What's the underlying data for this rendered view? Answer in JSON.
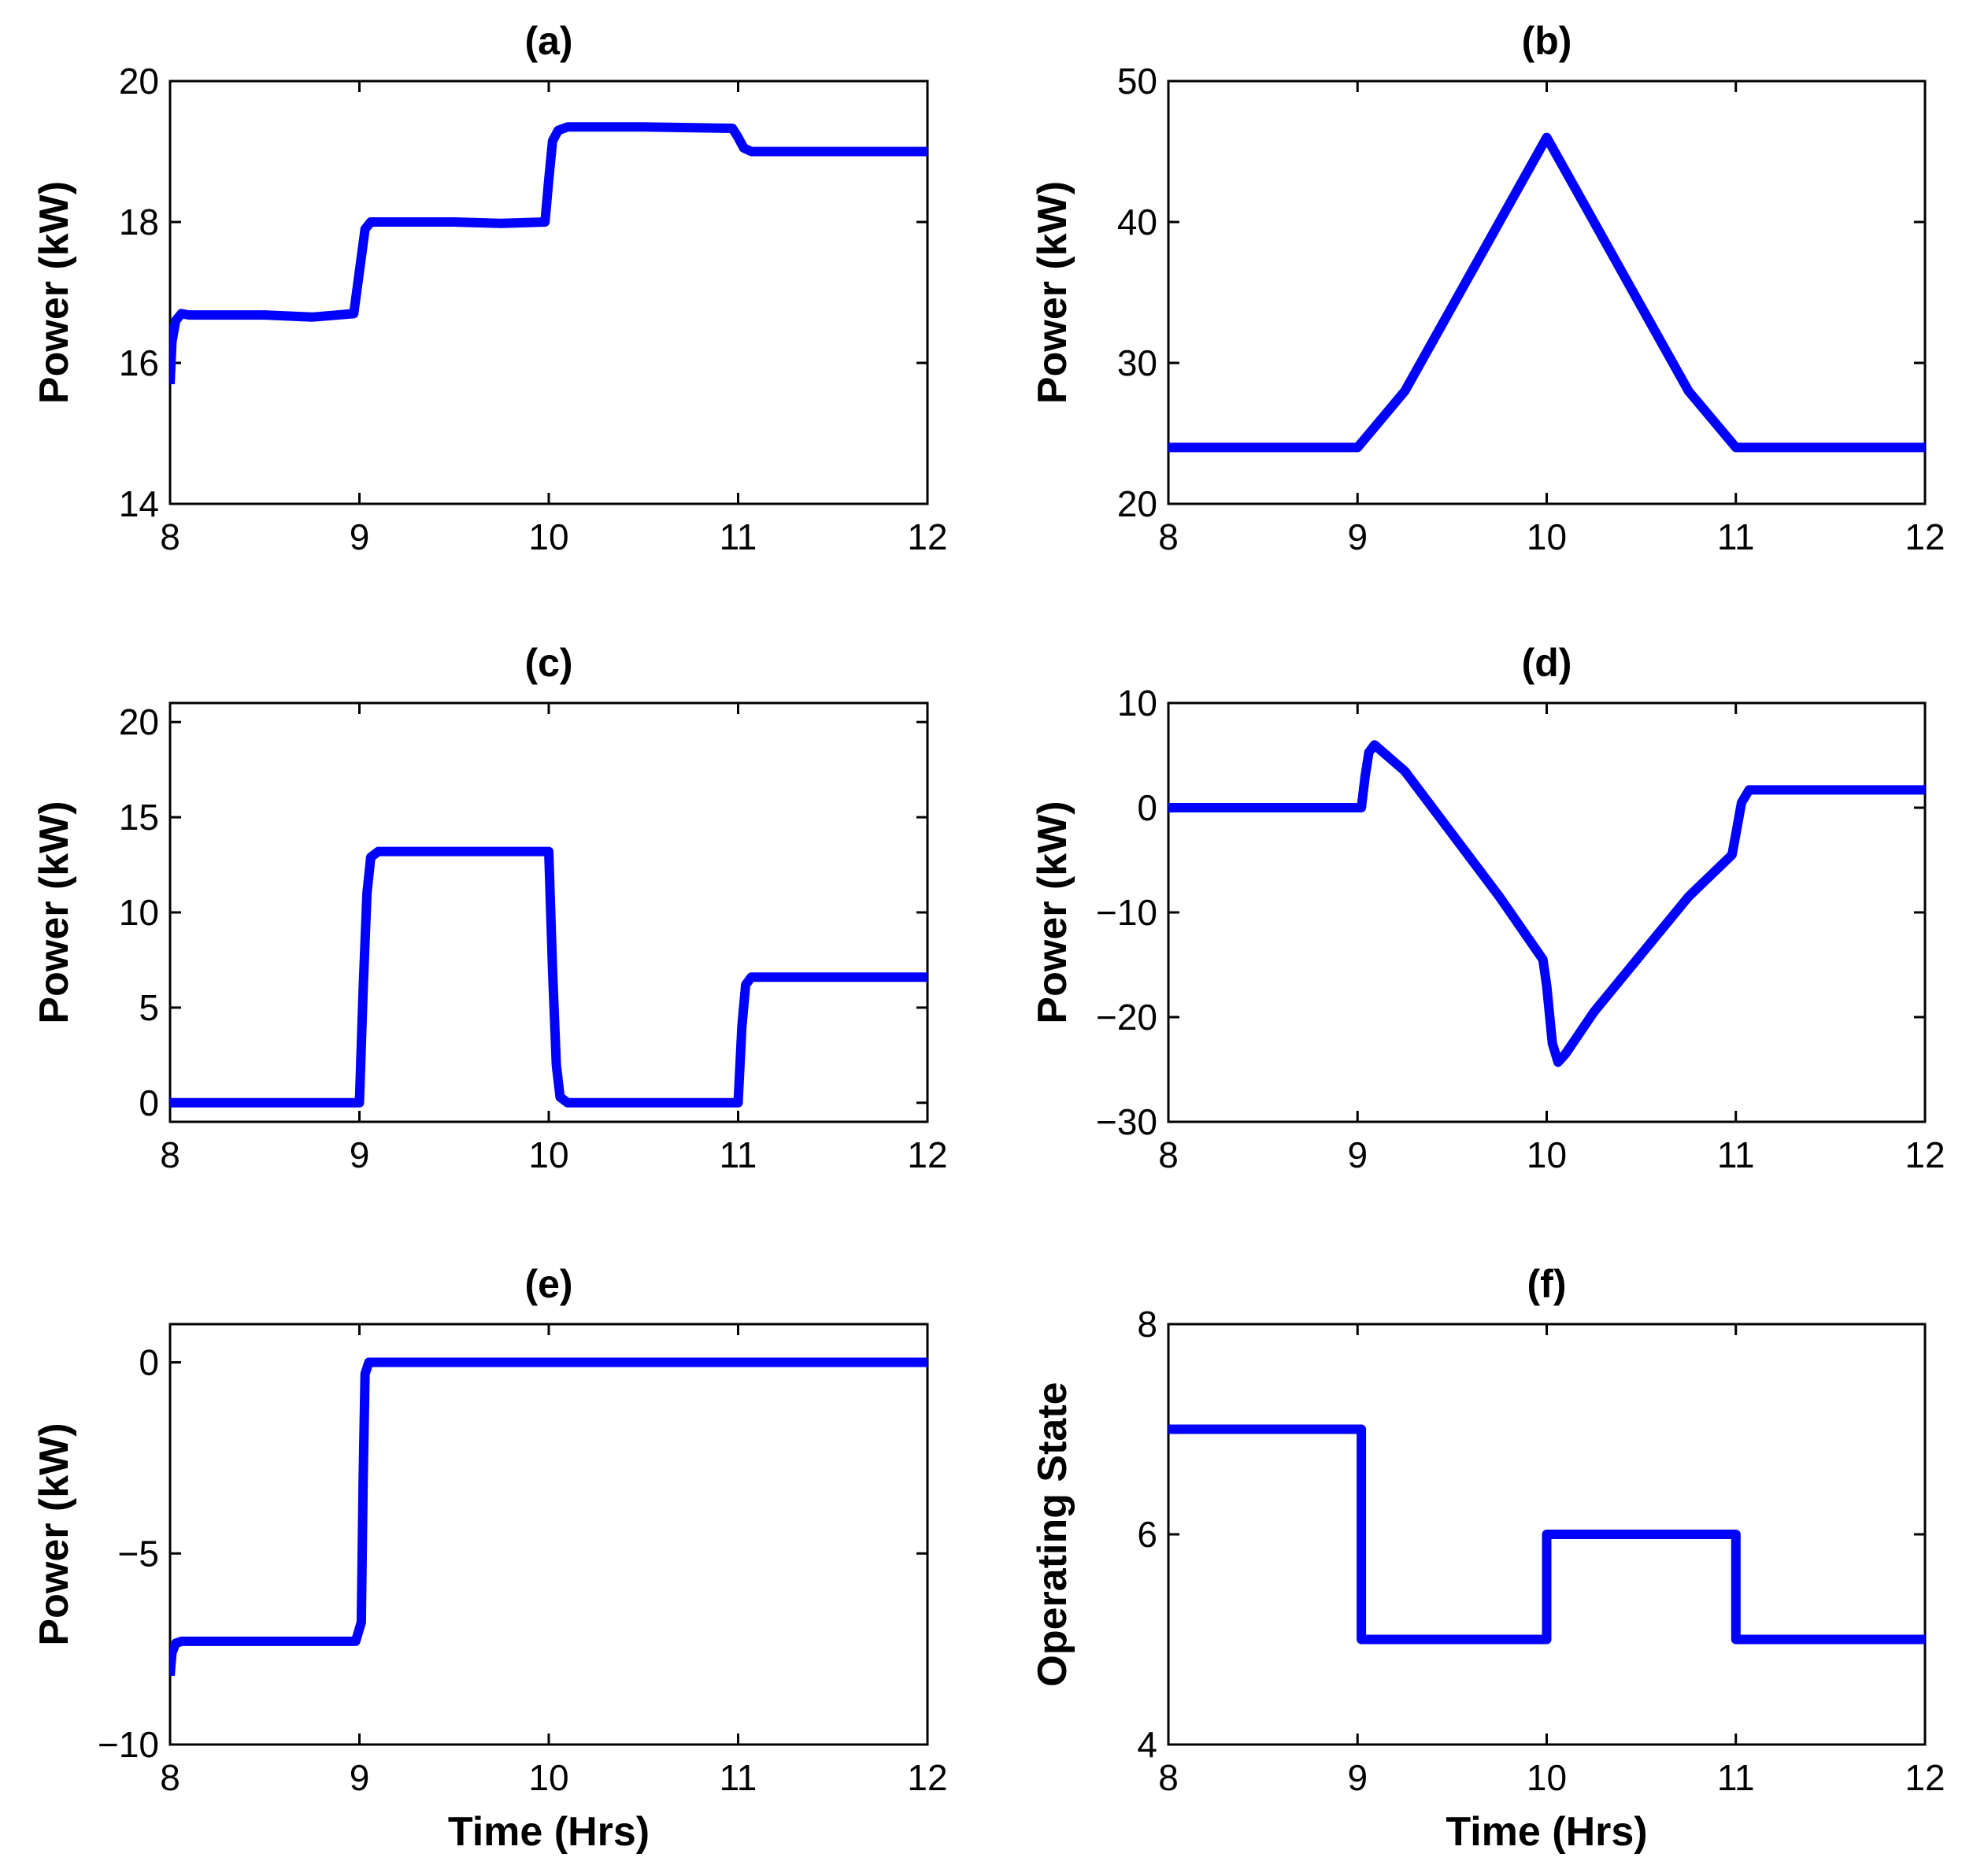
{
  "figure": {
    "background": "#ffffff",
    "line_color": "#0000ff"
  },
  "chart_data": [
    {
      "id": "a",
      "type": "line",
      "title": "(a)",
      "xlabel": "",
      "ylabel": "Power (kW)",
      "xlim": [
        8,
        12
      ],
      "ylim": [
        14,
        20
      ],
      "xticks": [
        8,
        9,
        10,
        11,
        12
      ],
      "yticks": [
        14,
        16,
        18,
        20
      ],
      "xtick_labels": [
        "8",
        "9",
        "10",
        "11",
        "12"
      ],
      "ytick_labels": [
        "14",
        "16",
        "18",
        "20"
      ],
      "series": [
        {
          "name": "power",
          "x": [
            8.0,
            8.01,
            8.03,
            8.06,
            8.1,
            8.5,
            8.75,
            8.97,
            9.0,
            9.03,
            9.06,
            9.1,
            9.5,
            9.75,
            9.98,
            10.0,
            10.02,
            10.05,
            10.1,
            10.5,
            10.97,
            11.0,
            11.03,
            11.07,
            11.5,
            12.0
          ],
          "y": [
            15.7,
            16.3,
            16.6,
            16.7,
            16.68,
            16.68,
            16.65,
            16.7,
            17.3,
            17.9,
            18.0,
            18.0,
            18.0,
            17.98,
            18.0,
            18.6,
            19.15,
            19.3,
            19.35,
            19.35,
            19.33,
            19.2,
            19.05,
            19.0,
            19.0,
            19.0
          ]
        }
      ]
    },
    {
      "id": "b",
      "type": "line",
      "title": "(b)",
      "xlabel": "",
      "ylabel": "Power (kW)",
      "xlim": [
        8,
        12
      ],
      "ylim": [
        20,
        50
      ],
      "xticks": [
        8,
        9,
        10,
        11,
        12
      ],
      "yticks": [
        20,
        30,
        40,
        50
      ],
      "xtick_labels": [
        "8",
        "9",
        "10",
        "11",
        "12"
      ],
      "ytick_labels": [
        "20",
        "30",
        "40",
        "50"
      ],
      "series": [
        {
          "name": "power",
          "x": [
            8.0,
            9.0,
            9.25,
            9.5,
            9.75,
            10.0,
            10.25,
            10.5,
            10.75,
            11.0,
            12.0
          ],
          "y": [
            24,
            24,
            28,
            34,
            40,
            46,
            40,
            34,
            28,
            24,
            24
          ]
        }
      ]
    },
    {
      "id": "c",
      "type": "line",
      "title": "(c)",
      "xlabel": "",
      "ylabel": "Power (kW)",
      "xlim": [
        8,
        12
      ],
      "ylim": [
        -1,
        21
      ],
      "xticks": [
        8,
        9,
        10,
        11,
        12
      ],
      "yticks": [
        0,
        5,
        10,
        15,
        20
      ],
      "xtick_labels": [
        "8",
        "9",
        "10",
        "11",
        "12"
      ],
      "ytick_labels": [
        "0",
        "5",
        "10",
        "15",
        "20"
      ],
      "series": [
        {
          "name": "power",
          "x": [
            8.0,
            9.0,
            9.02,
            9.04,
            9.06,
            9.1,
            9.5,
            10.0,
            10.02,
            10.04,
            10.06,
            10.1,
            10.5,
            11.0,
            11.02,
            11.04,
            11.07,
            11.5,
            12.0
          ],
          "y": [
            0,
            0,
            6,
            11,
            12.9,
            13.2,
            13.2,
            13.2,
            7,
            2,
            0.3,
            0,
            0,
            0,
            4,
            6.2,
            6.6,
            6.6,
            6.6
          ]
        }
      ]
    },
    {
      "id": "d",
      "type": "line",
      "title": "(d)",
      "xlabel": "",
      "ylabel": "Power (kW)",
      "xlim": [
        8,
        12
      ],
      "ylim": [
        -30,
        10
      ],
      "xticks": [
        8,
        9,
        10,
        11,
        12
      ],
      "yticks": [
        -30,
        -20,
        -10,
        0,
        10
      ],
      "xtick_labels": [
        "8",
        "9",
        "10",
        "11",
        "12"
      ],
      "ytick_labels": [
        "−30",
        "−20",
        "−10",
        "0",
        "10"
      ],
      "series": [
        {
          "name": "power",
          "x": [
            8.0,
            9.02,
            9.04,
            9.06,
            9.09,
            9.25,
            9.5,
            9.75,
            9.98,
            10.0,
            10.03,
            10.06,
            10.1,
            10.25,
            10.5,
            10.75,
            10.98,
            11.0,
            11.03,
            11.07,
            11.5,
            12.0
          ],
          "y": [
            0,
            0,
            3,
            5.3,
            6,
            3.5,
            -2.5,
            -8.5,
            -14.5,
            -17,
            -22.5,
            -24.3,
            -23.5,
            -19.5,
            -14,
            -8.5,
            -4.5,
            -2.5,
            0.5,
            1.7,
            1.7,
            1.7
          ]
        }
      ]
    },
    {
      "id": "e",
      "type": "line",
      "title": "(e)",
      "xlabel": "Time (Hrs)",
      "ylabel": "Power (kW)",
      "xlim": [
        8,
        12
      ],
      "ylim": [
        -10,
        1
      ],
      "xticks": [
        8,
        9,
        10,
        11,
        12
      ],
      "yticks": [
        -10,
        -5,
        0
      ],
      "xtick_labels": [
        "8",
        "9",
        "10",
        "11",
        "12"
      ],
      "ytick_labels": [
        "−10",
        "−5",
        "0"
      ],
      "series": [
        {
          "name": "power",
          "x": [
            8.0,
            8.01,
            8.03,
            8.06,
            8.5,
            8.98,
            9.01,
            9.02,
            9.03,
            9.05,
            10.0,
            12.0
          ],
          "y": [
            -8.2,
            -7.6,
            -7.35,
            -7.3,
            -7.3,
            -7.3,
            -6.8,
            -3,
            -0.3,
            0,
            0,
            0
          ]
        }
      ]
    },
    {
      "id": "f",
      "type": "line",
      "title": "(f)",
      "xlabel": "Time (Hrs)",
      "ylabel": "Operating State",
      "xlim": [
        8,
        12
      ],
      "ylim": [
        4,
        8
      ],
      "xticks": [
        8,
        9,
        10,
        11,
        12
      ],
      "yticks": [
        4,
        6,
        8
      ],
      "xtick_labels": [
        "8",
        "9",
        "10",
        "11",
        "12"
      ],
      "ytick_labels": [
        "4",
        "6",
        "8"
      ],
      "series": [
        {
          "name": "state",
          "x": [
            8.0,
            9.02,
            9.02,
            10.0,
            10.0,
            11.0,
            11.0,
            12.0
          ],
          "y": [
            7,
            7,
            5,
            5,
            6,
            6,
            5,
            5
          ]
        }
      ]
    }
  ]
}
